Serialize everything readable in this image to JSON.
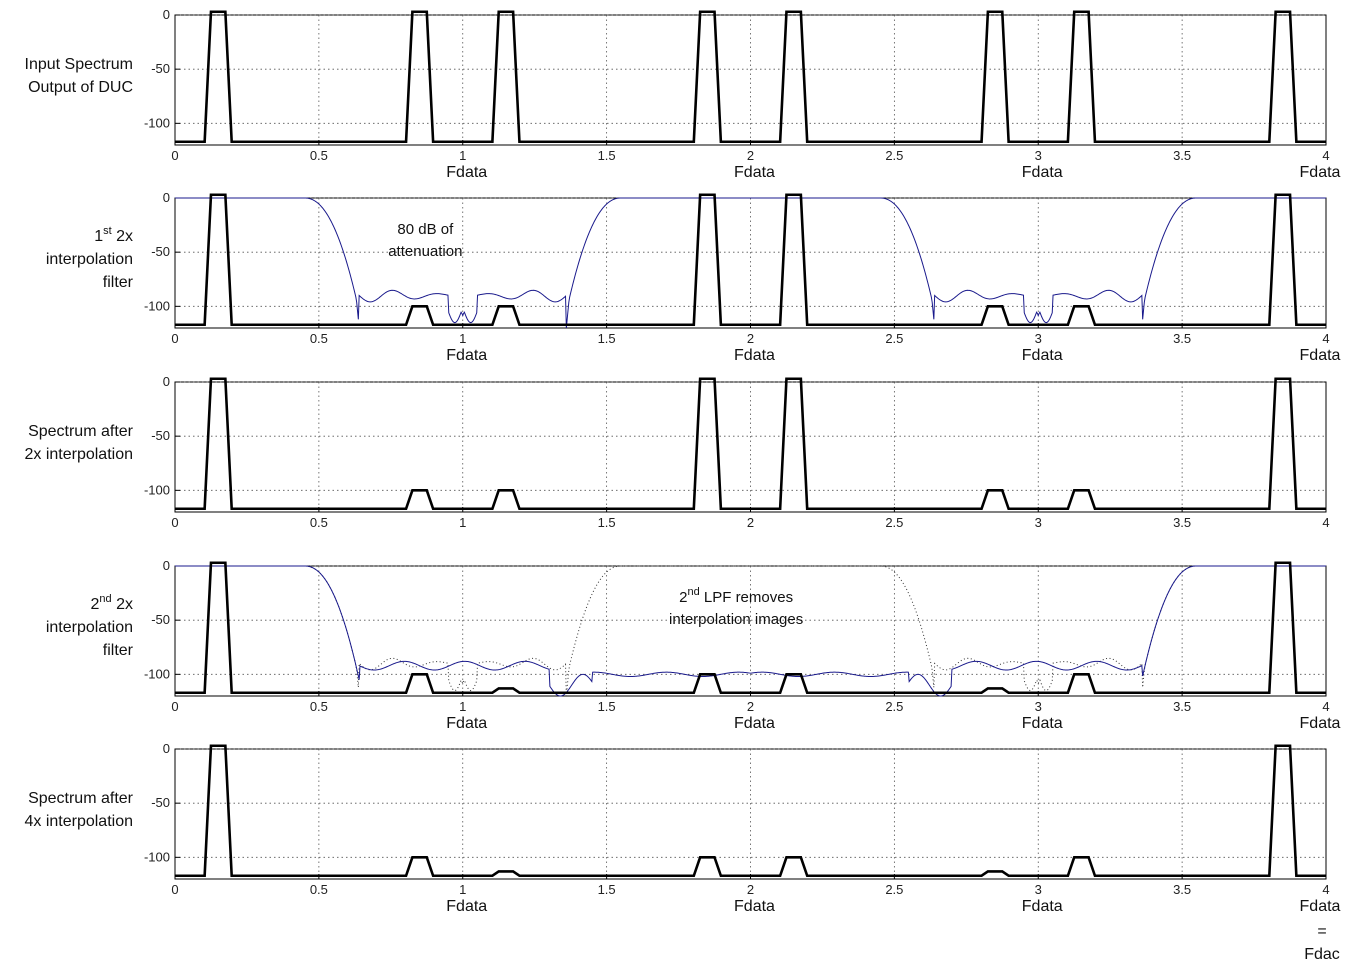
{
  "colors": {
    "spectrum": "#000000",
    "filter": "#1a1a8c",
    "grid": "#555555",
    "dotted_filter": "#333333"
  },
  "chart_data": [
    {
      "type": "line",
      "ylabel_lines": [
        "Input Spectrum",
        "Output of DUC"
      ],
      "ylabel_sup": "",
      "xlim": [
        0,
        4
      ],
      "ylim": [
        -120,
        0
      ],
      "xticks": [
        "0",
        "0.5",
        "1",
        "1.5",
        "2",
        "2.5",
        "3",
        "3.5",
        "4"
      ],
      "yticks": [
        "0",
        "-50",
        "-100"
      ],
      "grid": true,
      "fdata_labels": [
        {
          "x": 1,
          "text": "Fdata"
        },
        {
          "x": 2,
          "text": "Fdata"
        },
        {
          "x": 3,
          "text": "Fdata"
        },
        {
          "x": 4,
          "text": "Fdata"
        }
      ],
      "tones": [
        {
          "center": 0.15,
          "peak": 0
        },
        {
          "center": 0.85,
          "peak": 0
        },
        {
          "center": 1.15,
          "peak": 0
        },
        {
          "center": 1.85,
          "peak": 0
        },
        {
          "center": 2.15,
          "peak": 0
        },
        {
          "center": 2.85,
          "peak": 0
        },
        {
          "center": 3.15,
          "peak": 0
        },
        {
          "center": 3.85,
          "peak": 0
        }
      ],
      "filter": "none",
      "annotation": null
    },
    {
      "type": "line",
      "ylabel_lines": [
        "1st 2x",
        "interpolation",
        "filter"
      ],
      "ylabel_sup": "st",
      "xlim": [
        0,
        4
      ],
      "ylim": [
        -120,
        0
      ],
      "xticks": [
        "0",
        "0.5",
        "1",
        "1.5",
        "2",
        "2.5",
        "3",
        "3.5",
        "4"
      ],
      "yticks": [
        "0",
        "-50",
        "-100"
      ],
      "grid": true,
      "fdata_labels": [
        {
          "x": 1,
          "text": "Fdata"
        },
        {
          "x": 2,
          "text": "Fdata"
        },
        {
          "x": 3,
          "text": "Fdata"
        },
        {
          "x": 4,
          "text": "Fdata"
        }
      ],
      "tones": [
        {
          "center": 0.15,
          "peak": 0
        },
        {
          "center": 0.85,
          "peak": -100
        },
        {
          "center": 1.15,
          "peak": -100
        },
        {
          "center": 1.85,
          "peak": 0
        },
        {
          "center": 2.15,
          "peak": 0
        },
        {
          "center": 2.85,
          "peak": -100
        },
        {
          "center": 3.15,
          "peak": -100
        },
        {
          "center": 3.85,
          "peak": 0
        }
      ],
      "filter": "first",
      "annotation": {
        "lines": [
          "80 dB of",
          "attenuation"
        ],
        "x": 0.87,
        "y": -33
      }
    },
    {
      "type": "line",
      "ylabel_lines": [
        "Spectrum after",
        "2x interpolation"
      ],
      "ylabel_sup": "",
      "xlim": [
        0,
        4
      ],
      "ylim": [
        -120,
        0
      ],
      "xticks": [
        "0",
        "0.5",
        "1",
        "1.5",
        "2",
        "2.5",
        "3",
        "3.5",
        "4"
      ],
      "yticks": [
        "0",
        "-50",
        "-100"
      ],
      "grid": true,
      "fdata_labels": [],
      "tones": [
        {
          "center": 0.15,
          "peak": 0
        },
        {
          "center": 0.85,
          "peak": -100
        },
        {
          "center": 1.15,
          "peak": -100
        },
        {
          "center": 1.85,
          "peak": 0
        },
        {
          "center": 2.15,
          "peak": 0
        },
        {
          "center": 2.85,
          "peak": -100
        },
        {
          "center": 3.15,
          "peak": -100
        },
        {
          "center": 3.85,
          "peak": 0
        }
      ],
      "filter": "none",
      "annotation": null
    },
    {
      "type": "line",
      "ylabel_lines": [
        "2nd 2x",
        "interpolation",
        "filter"
      ],
      "ylabel_sup": "nd",
      "xlim": [
        0,
        4
      ],
      "ylim": [
        -120,
        0
      ],
      "xticks": [
        "0",
        "0.5",
        "1",
        "1.5",
        "2",
        "2.5",
        "3",
        "3.5",
        "4"
      ],
      "yticks": [
        "0",
        "-50",
        "-100"
      ],
      "grid": true,
      "fdata_labels": [
        {
          "x": 1,
          "text": "Fdata"
        },
        {
          "x": 2,
          "text": "Fdata"
        },
        {
          "x": 3,
          "text": "Fdata"
        },
        {
          "x": 4,
          "text": "Fdata"
        }
      ],
      "tones": [
        {
          "center": 0.15,
          "peak": 0
        },
        {
          "center": 0.85,
          "peak": -100
        },
        {
          "center": 1.15,
          "peak": -113
        },
        {
          "center": 1.85,
          "peak": -100
        },
        {
          "center": 2.15,
          "peak": -100
        },
        {
          "center": 2.85,
          "peak": -113
        },
        {
          "center": 3.15,
          "peak": -100
        },
        {
          "center": 3.85,
          "peak": 0
        }
      ],
      "filter": "second",
      "annotation": {
        "lines": [
          "2nd LPF removes",
          "interpolation images"
        ],
        "x": 1.95,
        "y": -33,
        "sup": "nd"
      }
    },
    {
      "type": "line",
      "ylabel_lines": [
        "Spectrum after",
        "4x interpolation"
      ],
      "ylabel_sup": "",
      "xlim": [
        0,
        4
      ],
      "ylim": [
        -120,
        0
      ],
      "xticks": [
        "0",
        "0.5",
        "1",
        "1.5",
        "2",
        "2.5",
        "3",
        "3.5",
        "4"
      ],
      "yticks": [
        "0",
        "-50",
        "-100"
      ],
      "grid": true,
      "fdata_labels": [
        {
          "x": 1,
          "text": "Fdata"
        },
        {
          "x": 2,
          "text": "Fdata"
        },
        {
          "x": 3,
          "text": "Fdata"
        },
        {
          "x": 4,
          "text": "Fdata"
        }
      ],
      "extra_bottom": [
        "=",
        "Fdac"
      ],
      "tones": [
        {
          "center": 0.15,
          "peak": 0
        },
        {
          "center": 0.85,
          "peak": -100
        },
        {
          "center": 1.15,
          "peak": -113
        },
        {
          "center": 1.85,
          "peak": -100
        },
        {
          "center": 2.15,
          "peak": -100
        },
        {
          "center": 2.85,
          "peak": -113
        },
        {
          "center": 3.15,
          "peak": -100
        },
        {
          "center": 3.85,
          "peak": 0
        }
      ],
      "filter": "none",
      "annotation": null
    }
  ]
}
